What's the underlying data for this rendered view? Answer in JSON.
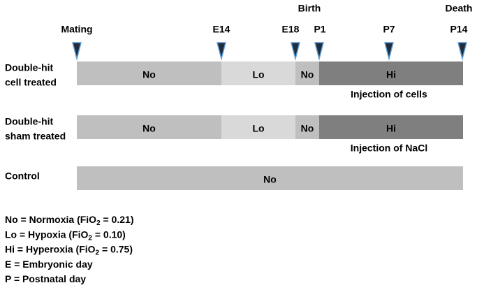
{
  "timeline": {
    "events": [
      "Birth",
      "Death"
    ],
    "timepoints": [
      "Mating",
      "E14",
      "E18",
      "P1",
      "P7",
      "P14"
    ],
    "rows": [
      {
        "label": [
          "Double-hit",
          "cell treated"
        ],
        "segments": [
          "No",
          "Lo",
          "No",
          "Hi"
        ],
        "note": "Injection of cells"
      },
      {
        "label": [
          "Double-hit",
          "sham treated"
        ],
        "segments": [
          "No",
          "Lo",
          "No",
          "Hi"
        ],
        "note": "Injection of NaCl"
      },
      {
        "label": [
          "Control"
        ],
        "segments": [
          "No"
        ]
      }
    ]
  },
  "legend": [
    {
      "text": "No = Normoxia (FiO",
      "sub": "2",
      "rest": " =  0.21)"
    },
    {
      "text": "Lo = Hypoxia (FiO",
      "sub": "2",
      "rest": " = 0.10)"
    },
    {
      "text": "Hi = Hyperoxia (FiO",
      "sub": "2",
      "rest": " = 0.75)"
    },
    {
      "text": "E = Embryonic day"
    },
    {
      "text": "P = Postnatal day"
    }
  ]
}
